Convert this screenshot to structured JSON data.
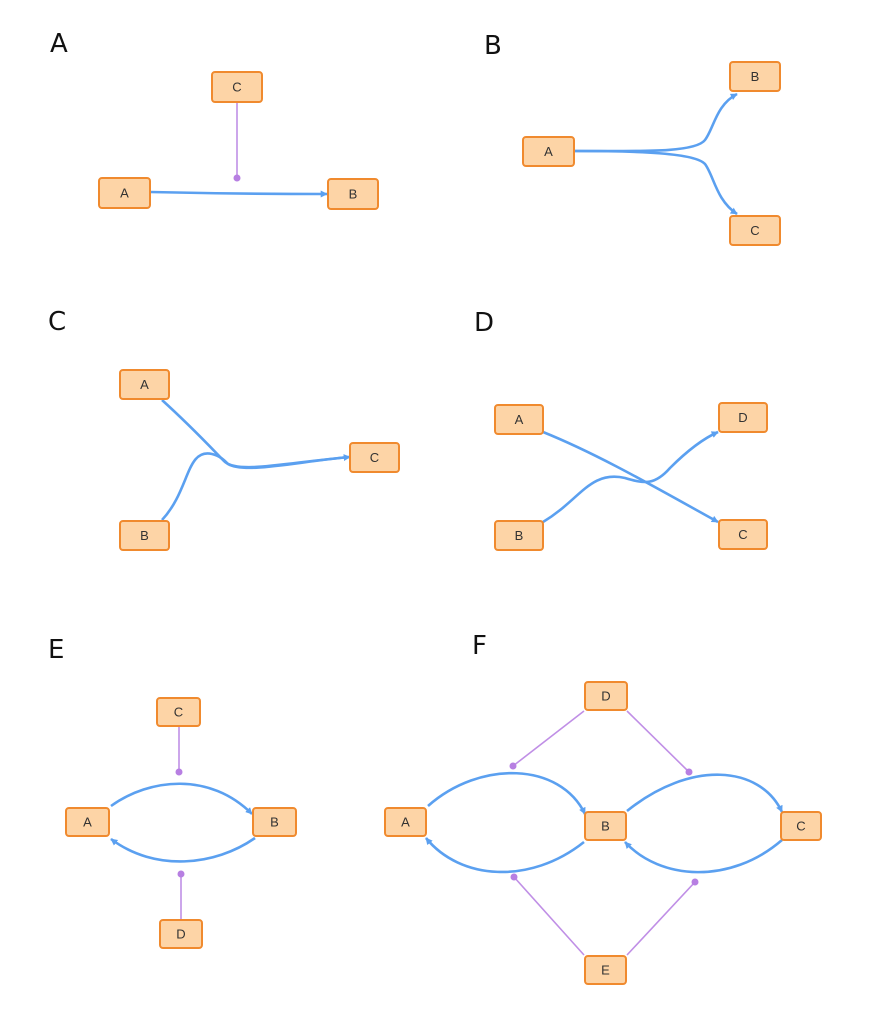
{
  "colors": {
    "node_fill": "#fdd4a6",
    "node_stroke": "#f08a2e",
    "edge": "#5ba0f0",
    "modifier": "#c08fe6"
  },
  "panels": [
    {
      "label": "A",
      "nodes": [
        "A",
        "B",
        "C"
      ],
      "edges": [
        [
          "A",
          "B"
        ]
      ],
      "modifiers": [
        [
          "C",
          "A→B"
        ]
      ]
    },
    {
      "label": "B",
      "nodes": [
        "A",
        "B",
        "C"
      ],
      "edges": [
        [
          "A",
          "B"
        ],
        [
          "A",
          "C"
        ]
      ],
      "modifiers": []
    },
    {
      "label": "C",
      "nodes": [
        "A",
        "B",
        "C"
      ],
      "edges": [
        [
          "A",
          "C"
        ],
        [
          "B",
          "C"
        ]
      ],
      "modifiers": []
    },
    {
      "label": "D",
      "nodes": [
        "A",
        "B",
        "C",
        "D"
      ],
      "edges": [
        [
          "A",
          "C"
        ],
        [
          "B",
          "D"
        ]
      ],
      "modifiers": []
    },
    {
      "label": "E",
      "nodes": [
        "A",
        "B",
        "C",
        "D"
      ],
      "edges": [
        [
          "A",
          "B"
        ],
        [
          "B",
          "A"
        ]
      ],
      "modifiers": [
        [
          "C",
          "A→B"
        ],
        [
          "D",
          "B→A"
        ]
      ]
    },
    {
      "label": "F",
      "nodes": [
        "A",
        "B",
        "C",
        "D",
        "E"
      ],
      "edges": [
        [
          "A",
          "B"
        ],
        [
          "B",
          "C"
        ],
        [
          "C",
          "B"
        ],
        [
          "B",
          "A"
        ]
      ],
      "modifiers": [
        [
          "D",
          "A→B"
        ],
        [
          "D",
          "B→C"
        ],
        [
          "E",
          "B→A"
        ],
        [
          "E",
          "C→B"
        ]
      ]
    }
  ]
}
